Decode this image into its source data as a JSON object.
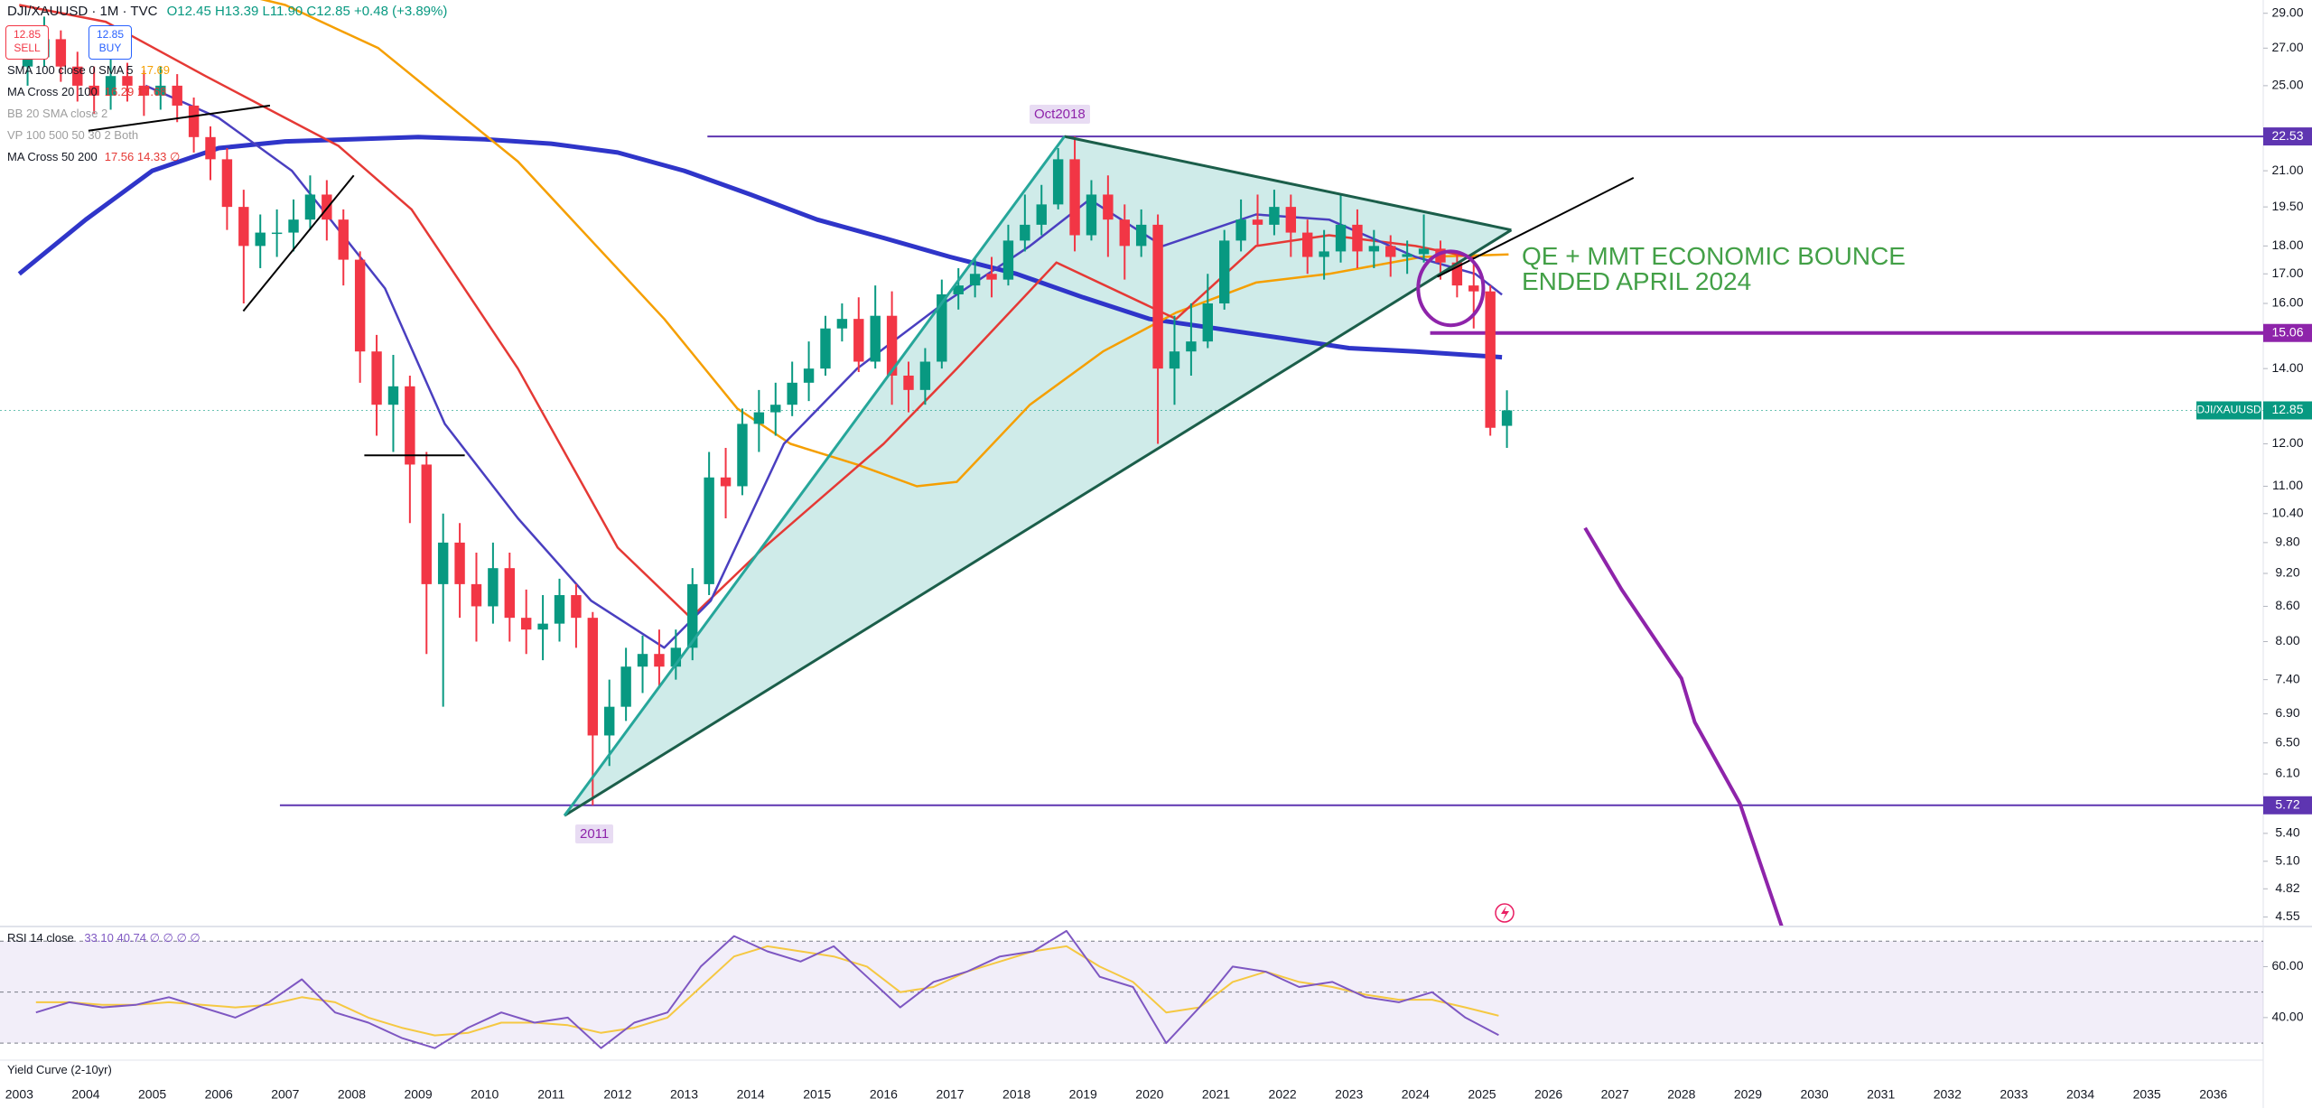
{
  "chart_data": [
    {
      "type": "candlestick",
      "title": "DJI/XAUUSD · 1M · TVC",
      "header_values": "O12.45 H13.39 L11.90 C12.85 +0.48 (+3.89%)",
      "trade_buttons": [
        {
          "price": "12.85",
          "label": "SELL"
        },
        {
          "price": "12.85",
          "label": "BUY"
        }
      ],
      "indicator_legends": [
        {
          "name": "SMA 100 close 0 SMA 5",
          "values": "17.69",
          "color": "#f59f00"
        },
        {
          "name": "MA Cross 20 100",
          "values": "16.29 17.68",
          "color": "#e53935"
        },
        {
          "name": "BB 20 SMA close 2",
          "values": "",
          "color": "#9e9e9e"
        },
        {
          "name": "VP 100 500 50 30 2 Both",
          "values": "",
          "color": "#9e9e9e"
        },
        {
          "name": "MA Cross 50 200",
          "values": "17.56 14.33 ∅",
          "color": "#e53935"
        }
      ],
      "annotations": {
        "peak": "Oct2018",
        "low": "2011",
        "note": [
          "QE + MMT ECONOMIC BOUNCE",
          "ENDED APRIL 2024"
        ]
      },
      "log_scale": true,
      "grid": false,
      "xlim": [
        2002.71,
        2036.75
      ],
      "xticks": [
        2003,
        2004,
        2005,
        2006,
        2007,
        2008,
        2009,
        2010,
        2011,
        2012,
        2013,
        2014,
        2015,
        2016,
        2017,
        2018,
        2019,
        2020,
        2021,
        2022,
        2023,
        2024,
        2025,
        2026,
        2027,
        2028,
        2029,
        2030,
        2031,
        2032,
        2033,
        2034,
        2035,
        2036
      ],
      "ylim": [
        4.47,
        29.8
      ],
      "yticks": [
        {
          "value": 29,
          "label": "29.00"
        },
        {
          "value": 27,
          "label": "27.00"
        },
        {
          "value": 25,
          "label": "25.00"
        },
        {
          "value": 21,
          "label": "21.00"
        },
        {
          "value": 19.5,
          "label": "19.50"
        },
        {
          "value": 18,
          "label": "18.00"
        },
        {
          "value": 17,
          "label": "17.00"
        },
        {
          "value": 16,
          "label": "16.00"
        },
        {
          "value": 14,
          "label": "14.00"
        },
        {
          "value": 12,
          "label": "12.00"
        },
        {
          "value": 11,
          "label": "11.00"
        },
        {
          "value": 10.4,
          "label": "10.40"
        },
        {
          "value": 9.8,
          "label": "9.80"
        },
        {
          "value": 9.2,
          "label": "9.20"
        },
        {
          "value": 8.6,
          "label": "8.60"
        },
        {
          "value": 8,
          "label": "8.00"
        },
        {
          "value": 7.4,
          "label": "7.40"
        },
        {
          "value": 6.9,
          "label": "6.90"
        },
        {
          "value": 6.5,
          "label": "6.50"
        },
        {
          "value": 6.1,
          "label": "6.10"
        },
        {
          "value": 5.4,
          "label": "5.40"
        },
        {
          "value": 5.1,
          "label": "5.10"
        },
        4.82,
        4.55
      ],
      "up_color": "#089981",
      "down_color": "#f23645",
      "x": [
        2003.125,
        2003.375,
        2003.625,
        2003.875,
        2004.125,
        2004.375,
        2004.625,
        2004.875,
        2005.125,
        2005.375,
        2005.625,
        2005.875,
        2006.125,
        2006.375,
        2006.625,
        2006.875,
        2007.125,
        2007.375,
        2007.625,
        2007.875,
        2008.125,
        2008.375,
        2008.625,
        2008.875,
        2009.125,
        2009.375,
        2009.625,
        2009.875,
        2010.125,
        2010.375,
        2010.625,
        2010.875,
        2011.125,
        2011.375,
        2011.625,
        2011.875,
        2012.125,
        2012.375,
        2012.625,
        2012.875,
        2013.125,
        2013.375,
        2013.625,
        2013.875,
        2014.125,
        2014.375,
        2014.625,
        2014.875,
        2015.125,
        2015.375,
        2015.625,
        2015.875,
        2016.125,
        2016.375,
        2016.625,
        2016.875,
        2017.125,
        2017.375,
        2017.625,
        2017.875,
        2018.125,
        2018.375,
        2018.625,
        2018.875,
        2019.125,
        2019.375,
        2019.625,
        2019.875,
        2020.125,
        2020.375,
        2020.625,
        2020.875,
        2021.125,
        2021.375,
        2021.625,
        2021.875,
        2022.125,
        2022.375,
        2022.625,
        2022.875,
        2023.125,
        2023.375,
        2023.625,
        2023.875,
        2024.125,
        2024.375,
        2024.625,
        2024.875,
        2025.125,
        2025.375
      ],
      "open": [
        26.0,
        26.5,
        27.5,
        26.0,
        25.0,
        24.5,
        25.5,
        25.0,
        24.5,
        25.0,
        24.0,
        22.5,
        21.5,
        19.5,
        18.0,
        18.5,
        18.5,
        19.0,
        20.0,
        19.0,
        17.5,
        14.5,
        13.0,
        13.5,
        11.5,
        9.0,
        9.8,
        9.0,
        8.6,
        9.3,
        8.4,
        8.2,
        8.3,
        8.8,
        8.4,
        6.6,
        7.0,
        7.6,
        7.8,
        7.6,
        7.9,
        9.0,
        11.2,
        11.0,
        12.5,
        12.8,
        13.0,
        13.6,
        14.0,
        15.2,
        15.5,
        14.2,
        15.6,
        13.8,
        13.4,
        14.2,
        16.3,
        16.6,
        17.0,
        16.8,
        18.2,
        18.8,
        19.6,
        21.5,
        18.4,
        20.0,
        19.0,
        18.0,
        18.8,
        14.0,
        14.5,
        14.8,
        16.0,
        18.2,
        19.0,
        18.8,
        19.5,
        18.5,
        17.6,
        17.8,
        18.8,
        17.8,
        18.0,
        17.6,
        17.7,
        17.9,
        17.4,
        16.6,
        16.4,
        12.45
      ],
      "high": [
        28.0,
        28.8,
        28.0,
        26.8,
        26.0,
        26.4,
        26.2,
        25.8,
        26.0,
        25.6,
        24.4,
        23.0,
        22.0,
        20.2,
        19.2,
        19.4,
        19.8,
        20.8,
        20.6,
        19.4,
        17.8,
        15.0,
        14.4,
        13.8,
        11.8,
        10.4,
        10.2,
        9.6,
        9.8,
        9.6,
        8.9,
        8.8,
        9.1,
        9.0,
        8.5,
        7.4,
        7.9,
        8.1,
        8.2,
        8.2,
        9.3,
        11.8,
        11.9,
        12.9,
        13.4,
        13.6,
        14.2,
        14.8,
        15.6,
        16.0,
        16.2,
        16.6,
        16.4,
        14.2,
        14.6,
        16.8,
        17.2,
        17.6,
        17.6,
        18.8,
        20.0,
        20.4,
        22.0,
        22.53,
        20.6,
        20.8,
        19.6,
        19.4,
        19.2,
        15.6,
        16.0,
        17.0,
        18.6,
        19.8,
        20.0,
        20.2,
        20.0,
        19.0,
        18.6,
        20.0,
        19.4,
        18.6,
        18.4,
        18.2,
        19.2,
        18.2,
        17.8,
        17.4,
        16.6,
        13.39
      ],
      "low": [
        25.0,
        26.0,
        25.2,
        24.2,
        23.6,
        23.8,
        24.2,
        23.5,
        23.8,
        23.2,
        21.8,
        20.6,
        18.6,
        16.0,
        17.2,
        17.6,
        17.8,
        18.6,
        18.2,
        16.6,
        13.6,
        12.2,
        11.8,
        10.2,
        7.8,
        7.0,
        8.4,
        8.0,
        8.3,
        8.0,
        7.8,
        7.7,
        8.0,
        7.9,
        5.72,
        6.2,
        6.8,
        7.2,
        7.3,
        7.4,
        7.7,
        8.8,
        10.3,
        10.8,
        11.8,
        12.2,
        12.7,
        13.1,
        13.8,
        14.8,
        13.9,
        14.0,
        13.0,
        12.8,
        13.0,
        14.0,
        15.8,
        16.2,
        16.2,
        16.6,
        17.8,
        18.4,
        19.4,
        17.8,
        18.2,
        17.6,
        16.8,
        17.6,
        12.0,
        13.0,
        13.8,
        14.6,
        15.8,
        17.8,
        18.0,
        18.4,
        17.6,
        17.0,
        16.8,
        17.4,
        17.2,
        17.2,
        16.9,
        17.0,
        17.4,
        16.8,
        16.2,
        15.2,
        12.2,
        11.9
      ],
      "close": [
        26.5,
        27.5,
        26.0,
        25.0,
        24.5,
        25.5,
        25.0,
        24.5,
        25.0,
        24.0,
        22.5,
        21.5,
        19.5,
        18.0,
        18.5,
        18.5,
        19.0,
        20.0,
        19.0,
        17.5,
        14.5,
        13.0,
        13.5,
        11.5,
        9.0,
        9.8,
        9.0,
        8.6,
        9.3,
        8.4,
        8.2,
        8.3,
        8.8,
        8.4,
        6.6,
        7.0,
        7.6,
        7.8,
        7.6,
        7.9,
        9.0,
        11.2,
        11.0,
        12.5,
        12.8,
        13.0,
        13.6,
        14.0,
        15.2,
        15.5,
        14.2,
        15.6,
        13.8,
        13.4,
        14.2,
        16.3,
        16.6,
        17.0,
        16.8,
        18.2,
        18.8,
        19.6,
        21.5,
        18.4,
        20.0,
        19.0,
        18.0,
        18.8,
        14.0,
        14.5,
        14.8,
        16.0,
        18.2,
        19.0,
        18.8,
        19.5,
        18.5,
        17.6,
        17.8,
        18.8,
        17.8,
        18.0,
        17.6,
        17.7,
        17.9,
        17.4,
        16.6,
        16.4,
        12.4,
        12.85
      ],
      "overlays": [
        {
          "color": "#2f35c9",
          "x": [
            2003,
            2004,
            2005,
            2006,
            2007,
            2008,
            2009,
            2010,
            2011,
            2012,
            2013,
            2014,
            2015,
            2016,
            2017,
            2018,
            2019,
            2020,
            2021,
            2022,
            2023,
            2024,
            2025.3
          ],
          "values": [
            17,
            19,
            21,
            22,
            22.3,
            22.4,
            22.5,
            22.4,
            22.2,
            21.8,
            21,
            20,
            19,
            18.3,
            17.6,
            17,
            16.2,
            15.5,
            15.2,
            14.9,
            14.6,
            14.5,
            14.33
          ]
        },
        {
          "color": "#f59f00",
          "x": [
            2005.5,
            2007,
            2008.4,
            2010.5,
            2012.7,
            2013.8,
            2014.6,
            2015.6,
            2016.5,
            2017.1,
            2018.2,
            2019.3,
            2020.4,
            2021.6,
            2022.7,
            2024.1,
            2025.4
          ],
          "values": [
            31,
            29.5,
            27,
            21.4,
            15.5,
            12.9,
            12,
            11.5,
            11,
            11.1,
            13,
            14.5,
            15.7,
            16.7,
            17,
            17.6,
            17.69
          ]
        },
        {
          "color": "#e53935",
          "x": [
            2003,
            2004.3,
            2005.8,
            2007.8,
            2008.9,
            2010.5,
            2012,
            2013.1,
            2014.2,
            2016,
            2017.1,
            2018.6,
            2020.4,
            2021.6,
            2022.7,
            2024,
            2024.9
          ],
          "values": [
            29.5,
            28.5,
            25.5,
            22.1,
            19.4,
            14,
            9.7,
            8.4,
            9.7,
            12,
            14,
            17.4,
            15.5,
            18,
            18.4,
            18,
            17.56
          ]
        },
        {
          "color": "#4a3fc0",
          "x": [
            2004.9,
            2006,
            2007.1,
            2008.5,
            2009.4,
            2010.5,
            2011.6,
            2012.7,
            2013.4,
            2014.5,
            2015.6,
            2016.9,
            2018.2,
            2019.1,
            2020.2,
            2021.6,
            2022.7,
            2024,
            2024.9,
            2025.3
          ],
          "values": [
            25,
            23.4,
            21,
            16.5,
            12.5,
            10.3,
            8.7,
            7.9,
            8.7,
            12,
            14,
            16,
            18,
            19.8,
            18,
            19.2,
            19,
            17.6,
            17,
            16.29
          ]
        }
      ],
      "hlines": [
        {
          "value": 22.53,
          "from": 2013.35,
          "color": "#5e35b1"
        },
        {
          "value": 15.06,
          "from": 2024.22,
          "color": "#8e24aa"
        },
        {
          "value": 5.72,
          "from": 2006.92,
          "color": "#5e35b1"
        }
      ],
      "last_price": {
        "value": 12.85,
        "label": "DJI/XAUUSD",
        "color": "#089981"
      },
      "drawings": [
        {
          "kind": "polygon",
          "color": "#26a69a",
          "x": [
            2011.2,
            2018.72,
            2025.44
          ],
          "y": [
            5.6,
            22.53,
            18.6
          ]
        },
        {
          "kind": "line",
          "color": "#1b5e4a",
          "x": [
            2018.72,
            2025.44
          ],
          "y": [
            22.53,
            18.6
          ]
        },
        {
          "kind": "line",
          "color": "#1b5e4a",
          "x": [
            2011.2,
            2025.44
          ],
          "y": [
            5.6,
            18.6
          ]
        },
        {
          "kind": "line",
          "color": "#26a69a",
          "x": [
            2011.2,
            2018.72
          ],
          "y": [
            5.6,
            22.53
          ]
        },
        {
          "kind": "line",
          "color": "#000000",
          "x": [
            2024.33,
            2027.28
          ],
          "y": [
            16.9,
            20.7
          ]
        },
        {
          "kind": "line",
          "color": "#000000",
          "x": [
            2004.04,
            2006.77
          ],
          "y": [
            22.8,
            24.0
          ]
        },
        {
          "kind": "line",
          "color": "#000000",
          "x": [
            2006.37,
            2008.03
          ],
          "y": [
            15.75,
            20.8
          ]
        },
        {
          "kind": "line",
          "color": "#000000",
          "x": [
            2008.19,
            2009.7
          ],
          "y": [
            11.72,
            11.72
          ]
        },
        {
          "kind": "line",
          "color": "#8e24aa",
          "x": [
            2026.55,
            2027.1,
            2028.0,
            2028.2,
            2028.88,
            2029.6
          ],
          "y": [
            10.1,
            8.9,
            7.42,
            6.78,
            5.74,
            4.3
          ]
        },
        {
          "kind": "ellipse",
          "color": "#8e24aa",
          "x": [
            2024.04,
            2025.02
          ],
          "y": [
            15.3,
            17.8
          ]
        }
      ]
    },
    {
      "type": "line",
      "title": "RSI 14 close",
      "legend_values": "33.10 40.74 ∅ ∅ ∅ ∅",
      "footer": "Yield Curve (2-10yr)",
      "ylim": [
        24,
        75.4
      ],
      "yticks": [
        {
          "value": 60,
          "label": "60.00"
        },
        {
          "value": 40,
          "label": "40.00"
        }
      ],
      "band": [
        30,
        70
      ],
      "levels": [
        70,
        50,
        30
      ],
      "x": [
        2003.25,
        2003.75,
        2004.25,
        2004.75,
        2005.25,
        2005.75,
        2006.25,
        2006.75,
        2007.25,
        2007.75,
        2008.25,
        2008.75,
        2009.25,
        2009.75,
        2010.25,
        2010.75,
        2011.25,
        2011.75,
        2012.25,
        2012.75,
        2013.25,
        2013.75,
        2014.25,
        2014.75,
        2015.25,
        2015.75,
        2016.25,
        2016.75,
        2017.25,
        2017.75,
        2018.25,
        2018.75,
        2019.25,
        2019.75,
        2020.25,
        2020.75,
        2021.25,
        2021.75,
        2022.25,
        2022.75,
        2023.25,
        2023.75,
        2024.25,
        2024.75,
        2025.25
      ],
      "series": [
        {
          "color": "#7e57c2",
          "values": [
            42,
            46,
            44,
            45,
            48,
            44,
            40,
            46,
            55,
            42,
            38,
            32,
            28,
            36,
            42,
            38,
            40,
            28,
            38,
            42,
            60,
            72,
            66,
            62,
            68,
            56,
            44,
            54,
            58,
            64,
            66,
            74,
            56,
            52,
            30,
            44,
            60,
            58,
            52,
            54,
            48,
            46,
            50,
            40,
            33.1
          ]
        },
        {
          "color": "#f5c842",
          "values": [
            46,
            46,
            45,
            45,
            46,
            45,
            44,
            45,
            48,
            46,
            40,
            36,
            33,
            34,
            38,
            38,
            37,
            34,
            36,
            40,
            52,
            64,
            68,
            66,
            64,
            60,
            50,
            52,
            58,
            62,
            66,
            68,
            60,
            54,
            42,
            44,
            54,
            58,
            54,
            52,
            49,
            47,
            47,
            44,
            40.74
          ]
        }
      ]
    }
  ]
}
